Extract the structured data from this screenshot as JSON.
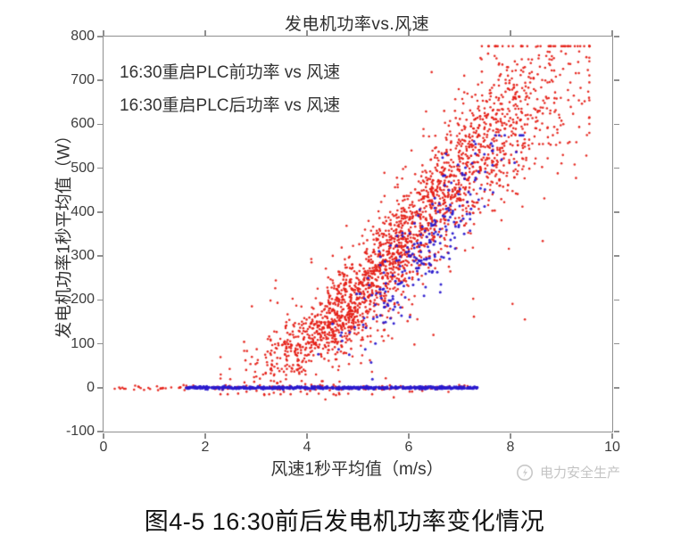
{
  "figure": {
    "title": "发电机功率vs.风速",
    "legend": [
      "16:30重启PLC前功率 vs 风速",
      "16:30重启PLC后功率 vs 风速"
    ],
    "x_axis": {
      "label": "风速1秒平均值（m/s）",
      "ticks": [
        0,
        2,
        4,
        6,
        8,
        10
      ],
      "range": [
        0,
        10
      ]
    },
    "y_axis": {
      "label": "发电机功率1秒平均值（W）",
      "ticks": [
        -100,
        0,
        100,
        200,
        300,
        400,
        500,
        600,
        700,
        800
      ],
      "range": [
        -100,
        800
      ]
    },
    "watermark": {
      "text": "电力安全生产",
      "logo": "power-safety-logo-icon"
    },
    "caption": "图4-5 16:30前后发电机功率变化情况"
  },
  "chart_data": {
    "type": "scatter",
    "title": "发电机功率vs.风速",
    "xlabel": "风速1秒平均值（m/s）",
    "ylabel": "发电机功率1秒平均值（W）",
    "xlim": [
      0,
      10
    ],
    "ylim": [
      -100,
      800
    ],
    "x_ticks": [
      0,
      2,
      4,
      6,
      8,
      10
    ],
    "y_ticks": [
      -100,
      0,
      100,
      200,
      300,
      400,
      500,
      600,
      700,
      800
    ],
    "grid": false,
    "legend_position": "top-left-inside",
    "frame_color": "#8f8f8f",
    "series": [
      {
        "name": "16:30重启PLC前功率 vs 风速",
        "color": "#e52017",
        "marker": "dot",
        "summary": "Power-curve scatter: rises from ~0 W at 2.5 m/s to ~700-770 W at 8-9.5 m/s; also sparse zero-power points from 0 to 7.2 m/s and a few points near -15 W."
      },
      {
        "name": "16:30重启PLC后功率 vs 风速",
        "color": "#2a1ace",
        "marker": "dot",
        "summary": "Dense zero-power line from 1.6 to 7.35 m/s plus a cluster tracking the lower edge of the power curve between 4.2 and 8.25 m/s up to ~575 W."
      }
    ],
    "trend_logistic": {
      "L": 750,
      "x0": 6.2,
      "k": 1.25
    },
    "generator": {
      "seed": 42,
      "red": {
        "color": "#e52017",
        "radius": 1.3,
        "main": {
          "n": 2400,
          "mix": [
            {
              "w": 0.62,
              "mu": 5.15,
              "sd": 1.05
            },
            {
              "w": 0.38,
              "mu": 7.55,
              "sd": 0.95
            }
          ],
          "x_clip": [
            2.3,
            9.55
          ],
          "noise_base": 30,
          "noise_scale": 0.09,
          "outlier_p": 0.1,
          "outlier_mult": 2.2,
          "y_clip": [
            -15,
            778
          ]
        },
        "zero": {
          "n": 150,
          "segments": [
            {
              "w": 0.25,
              "range": [
                0.05,
                2.2
              ]
            },
            {
              "w": 0.75,
              "range": [
                2.2,
                7.2
              ]
            }
          ],
          "y_sd": 2.5
        },
        "below": {
          "n": 18,
          "x_range": [
            2.8,
            7.0
          ],
          "y_mu": -13,
          "y_sd": 5
        }
      },
      "blue": {
        "color": "#2a1ace",
        "radius": 1.5,
        "zero": {
          "n": 620,
          "segments": [
            {
              "w": 0.7,
              "range": [
                1.62,
                6.05
              ]
            },
            {
              "w": 0.3,
              "range": [
                6.05,
                7.35
              ]
            }
          ],
          "y_sd": 1.4
        },
        "curve": {
          "n": 240,
          "mu": 6.3,
          "sd": 0.78,
          "x_clip": [
            4.2,
            8.25
          ],
          "x_shift": 0.5,
          "noise_sd": 55,
          "y_clip": [
            3,
            575
          ]
        }
      }
    }
  }
}
